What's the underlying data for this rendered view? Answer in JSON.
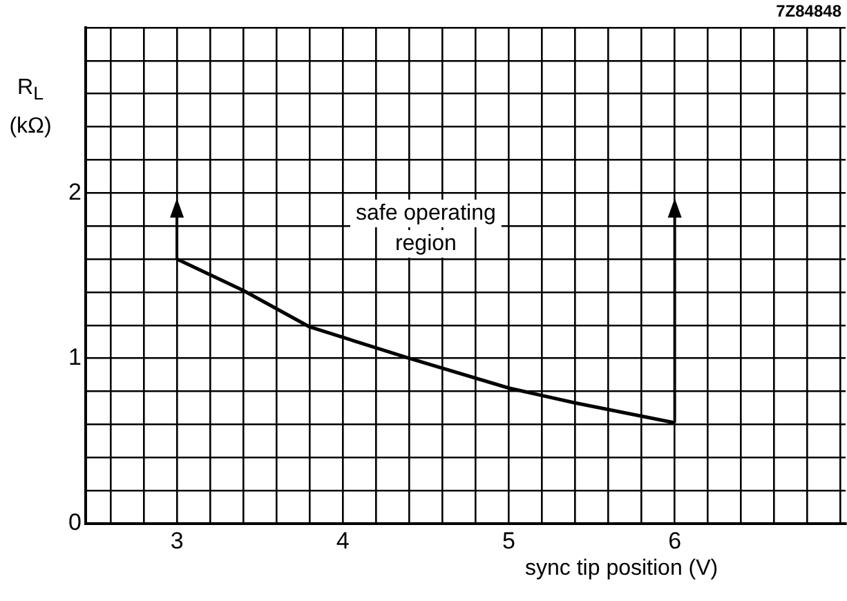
{
  "chart_data": {
    "type": "line",
    "xlabel": "sync tip position (V)",
    "ylabel": "R$_{L}$\n(kΩ)",
    "annotations": [
      "safe operating region",
      "7Z84848"
    ],
    "series": [
      {
        "color": "#000000",
        "x": [
          3,
          3.4,
          3.8,
          4.4,
          5.0,
          5.4,
          6.0
        ],
        "values": [
          1.6,
          1.41,
          1.19,
          1.0,
          0.82,
          0.73,
          0.61
        ]
      }
    ],
    "xlim": [
      2.45,
      7.03
    ],
    "xticks": [
      {
        "value": 2.6,
        "label": null
      },
      {
        "value": 2.8,
        "label": null
      },
      3,
      {
        "value": 3.2,
        "label": null
      },
      {
        "value": 3.4,
        "label": null
      },
      {
        "value": 3.6,
        "label": null
      },
      {
        "value": 3.8,
        "label": null
      },
      4,
      {
        "value": 4.2,
        "label": null
      },
      {
        "value": 4.4,
        "label": null
      },
      {
        "value": 4.6,
        "label": null
      },
      {
        "value": 4.8,
        "label": null
      },
      5,
      {
        "value": 5.2,
        "label": null
      },
      {
        "value": 5.4,
        "label": null
      },
      {
        "value": 5.6,
        "label": null
      },
      {
        "value": 5.8,
        "label": null
      },
      6,
      {
        "value": 6.2,
        "label": null
      },
      {
        "value": 6.4,
        "label": null
      },
      {
        "value": 6.6,
        "label": null
      },
      {
        "value": 6.8,
        "label": null
      },
      {
        "value": 7.0,
        "label": null
      }
    ],
    "ylim": [
      0,
      3
    ],
    "yticks": [
      0,
      {
        "value": 0.2,
        "label": null
      },
      {
        "value": 0.4,
        "label": null
      },
      {
        "value": 0.6,
        "label": null
      },
      {
        "value": 0.8,
        "label": null
      },
      1,
      {
        "value": 1.2,
        "label": null
      },
      {
        "value": 1.4,
        "label": null
      },
      {
        "value": 1.6,
        "label": null
      },
      {
        "value": 1.8,
        "label": null
      },
      2,
      {
        "value": 2.2,
        "label": null
      },
      {
        "value": 2.4,
        "label": null
      },
      {
        "value": 2.6,
        "label": null
      },
      {
        "value": 2.8,
        "label": null
      },
      {
        "value": 3,
        "label": null
      }
    ],
    "grid": true,
    "legend": false,
    "marker": "none",
    "line_style": "solid"
  }
}
